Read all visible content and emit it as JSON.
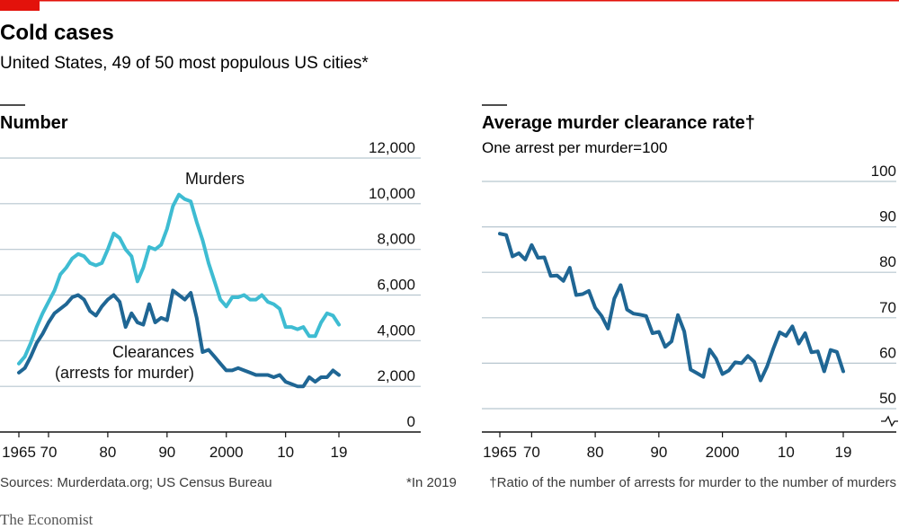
{
  "header": {
    "title": "Cold cases",
    "subtitle": "United States, 49 of 50 most populous US cities*"
  },
  "footer": {
    "sources": "Sources: Murderdata.org; US Census Bureau",
    "note_in_2019": "*In 2019",
    "note_ratio": "†Ratio of the number of arrests for murder to the number of murders",
    "brand": "The Economist"
  },
  "colors": {
    "accent_red": "#e3120b",
    "murders": "#3ebcd2",
    "clearances": "#1f6694",
    "rate": "#1f6694",
    "grid": "#b7c6cf",
    "axis": "#121212"
  },
  "chart_data": [
    {
      "type": "line",
      "title": "Number",
      "x_ticks": [
        "1965",
        "70",
        "80",
        "90",
        "2000",
        "10",
        "19"
      ],
      "ylim": [
        0,
        12000
      ],
      "y_ticks": [
        "0",
        "2,000",
        "4,000",
        "6,000",
        "8,000",
        "10,000",
        "12,000"
      ],
      "y_tick_values": [
        0,
        2000,
        4000,
        6000,
        8000,
        10000,
        12000
      ],
      "x_tick_values": [
        1965,
        1970,
        1980,
        1990,
        2000,
        2010,
        2019
      ],
      "series": [
        {
          "name": "Murders",
          "color_key": "murders",
          "x": [
            1965,
            1966,
            1967,
            1968,
            1969,
            1970,
            1971,
            1972,
            1973,
            1974,
            1975,
            1976,
            1977,
            1978,
            1979,
            1980,
            1981,
            1982,
            1983,
            1984,
            1985,
            1986,
            1987,
            1988,
            1989,
            1990,
            1991,
            1992,
            1993,
            1994,
            1995,
            1996,
            1997,
            1998,
            1999,
            2000,
            2001,
            2002,
            2003,
            2004,
            2005,
            2006,
            2007,
            2008,
            2009,
            2010,
            2011,
            2012,
            2013,
            2014,
            2015,
            2016,
            2017,
            2018,
            2019
          ],
          "values": [
            3000,
            3300,
            3900,
            4600,
            5200,
            5700,
            6200,
            6900,
            7200,
            7600,
            7800,
            7700,
            7400,
            7300,
            7400,
            8000,
            8700,
            8500,
            8000,
            7700,
            6600,
            7200,
            8100,
            8000,
            8200,
            8900,
            9900,
            10400,
            10200,
            10100,
            9200,
            8400,
            7400,
            6600,
            5800,
            5500,
            5900,
            5900,
            6000,
            5800,
            5800,
            6000,
            5700,
            5600,
            5400,
            4600,
            4600,
            4500,
            4600,
            4200,
            4200,
            4800,
            5200,
            5100,
            4700
          ]
        },
        {
          "name": "Clearances",
          "label_line2": "(arrests for murder)",
          "color_key": "clearances",
          "x": [
            1965,
            1966,
            1967,
            1968,
            1969,
            1970,
            1971,
            1972,
            1973,
            1974,
            1975,
            1976,
            1977,
            1978,
            1979,
            1980,
            1981,
            1982,
            1983,
            1984,
            1985,
            1986,
            1987,
            1988,
            1989,
            1990,
            1991,
            1992,
            1993,
            1994,
            1995,
            1996,
            1997,
            1998,
            1999,
            2000,
            2001,
            2002,
            2003,
            2004,
            2005,
            2006,
            2007,
            2008,
            2009,
            2010,
            2011,
            2012,
            2013,
            2014,
            2015,
            2016,
            2017,
            2018,
            2019
          ],
          "values": [
            2600,
            2800,
            3300,
            3900,
            4300,
            4800,
            5200,
            5400,
            5600,
            5900,
            6000,
            5800,
            5300,
            5100,
            5500,
            5800,
            6000,
            5700,
            4600,
            5200,
            4800,
            4700,
            5600,
            4800,
            5000,
            4900,
            6200,
            6000,
            5800,
            6100,
            5000,
            3500,
            3600,
            3300,
            3000,
            2700,
            2700,
            2800,
            2700,
            2600,
            2500,
            2500,
            2500,
            2400,
            2500,
            2200,
            2100,
            2000,
            2000,
            2400,
            2200,
            2400,
            2400,
            2700,
            2500
          ]
        }
      ]
    },
    {
      "type": "line",
      "title": "Average murder clearance rate†",
      "subtitle": "One arrest per murder=100",
      "x_ticks": [
        "1965",
        "70",
        "80",
        "90",
        "2000",
        "10",
        "19"
      ],
      "x_tick_values": [
        1965,
        1970,
        1980,
        1990,
        2000,
        2010,
        2019
      ],
      "ylim": [
        50,
        100
      ],
      "y_ticks": [
        "50",
        "60",
        "70",
        "80",
        "90",
        "100"
      ],
      "y_tick_values": [
        50,
        60,
        70,
        80,
        90,
        100
      ],
      "axis_break": true,
      "series": [
        {
          "color_key": "rate",
          "x": [
            1965,
            1966,
            1967,
            1968,
            1969,
            1970,
            1971,
            1972,
            1973,
            1974,
            1975,
            1976,
            1977,
            1978,
            1979,
            1980,
            1981,
            1982,
            1983,
            1984,
            1985,
            1986,
            1987,
            1988,
            1989,
            1990,
            1991,
            1992,
            1993,
            1994,
            1995,
            1996,
            1997,
            1998,
            1999,
            2000,
            2001,
            2002,
            2003,
            2004,
            2005,
            2006,
            2007,
            2008,
            2009,
            2010,
            2011,
            2012,
            2013,
            2014,
            2015,
            2016,
            2017,
            2018,
            2019
          ],
          "values": [
            88.5,
            88.2,
            83.5,
            84.2,
            82.8,
            86.0,
            83.2,
            83.3,
            79.2,
            79.3,
            78.1,
            81.0,
            75.0,
            75.2,
            75.9,
            72.2,
            70.4,
            67.6,
            74.2,
            77.2,
            71.8,
            70.9,
            70.7,
            70.4,
            66.6,
            66.9,
            63.6,
            64.8,
            70.6,
            67.0,
            58.6,
            57.8,
            57.0,
            63.0,
            61.0,
            57.6,
            58.4,
            60.2,
            60.0,
            61.6,
            60.3,
            56.2,
            59.2,
            63.2,
            66.8,
            66.0,
            68.1,
            64.3,
            66.6,
            62.4,
            62.6,
            58.2,
            62.9,
            62.5,
            58.2
          ]
        }
      ]
    }
  ]
}
